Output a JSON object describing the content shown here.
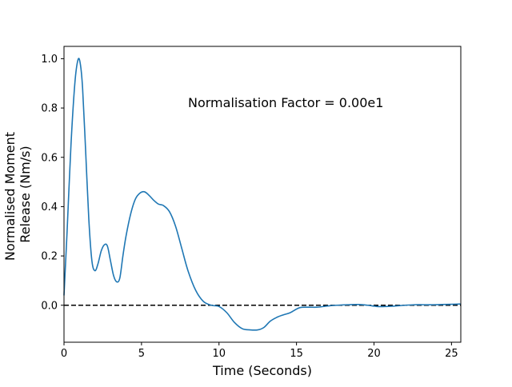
{
  "chart_data": {
    "type": "line",
    "title": "",
    "xlabel": "Time (Seconds)",
    "ylabel_lines": [
      "Normalised Moment",
      "Release (Nm/s)"
    ],
    "annotation": "Normalisation Factor = 0.00e1",
    "xlim": [
      0,
      25.6
    ],
    "ylim": [
      -0.15,
      1.05
    ],
    "xticks": [
      0,
      5,
      10,
      15,
      20,
      25
    ],
    "xtick_labels": [
      "0",
      "5",
      "10",
      "15",
      "20",
      "25"
    ],
    "yticks": [
      0.0,
      0.2,
      0.4,
      0.6,
      0.8,
      1.0
    ],
    "ytick_labels": [
      "0.0",
      "0.2",
      "0.4",
      "0.6",
      "0.8",
      "1.0"
    ],
    "grid": false,
    "reference_line": {
      "y": 0,
      "style": "dashed",
      "color": "#000000"
    },
    "series": [
      {
        "color": "#1f77b4",
        "x": [
          0,
          0.2,
          0.45,
          0.7,
          0.9,
          1.05,
          1.2,
          1.4,
          1.6,
          1.8,
          2.0,
          2.2,
          2.4,
          2.6,
          2.8,
          3.0,
          3.2,
          3.4,
          3.6,
          3.8,
          4.0,
          4.3,
          4.6,
          4.9,
          5.2,
          5.5,
          5.8,
          6.1,
          6.4,
          6.8,
          7.2,
          7.6,
          8.0,
          8.5,
          9.0,
          9.5,
          10.0,
          10.5,
          11.0,
          11.5,
          12.0,
          12.5,
          12.9,
          13.3,
          13.7,
          14.1,
          14.6,
          15.2,
          15.8,
          16.3,
          17.0,
          17.6,
          18.3,
          19.0,
          19.6,
          20.2,
          20.8,
          21.4,
          22.0,
          22.6,
          23.2,
          23.8,
          24.4,
          25.0,
          25.6
        ],
        "values": [
          0.04,
          0.3,
          0.65,
          0.9,
          0.995,
          0.98,
          0.88,
          0.62,
          0.35,
          0.18,
          0.14,
          0.17,
          0.22,
          0.245,
          0.24,
          0.18,
          0.12,
          0.095,
          0.11,
          0.2,
          0.28,
          0.37,
          0.43,
          0.455,
          0.46,
          0.445,
          0.425,
          0.41,
          0.405,
          0.38,
          0.32,
          0.23,
          0.14,
          0.06,
          0.015,
          0.0,
          -0.005,
          -0.03,
          -0.07,
          -0.095,
          -0.1,
          -0.1,
          -0.09,
          -0.065,
          -0.05,
          -0.04,
          -0.03,
          -0.01,
          -0.008,
          -0.008,
          -0.003,
          0.0,
          0.002,
          0.003,
          0.0,
          -0.005,
          -0.005,
          -0.003,
          0.0,
          0.002,
          0.002,
          0.002,
          0.003,
          0.004,
          0.005
        ]
      }
    ]
  }
}
